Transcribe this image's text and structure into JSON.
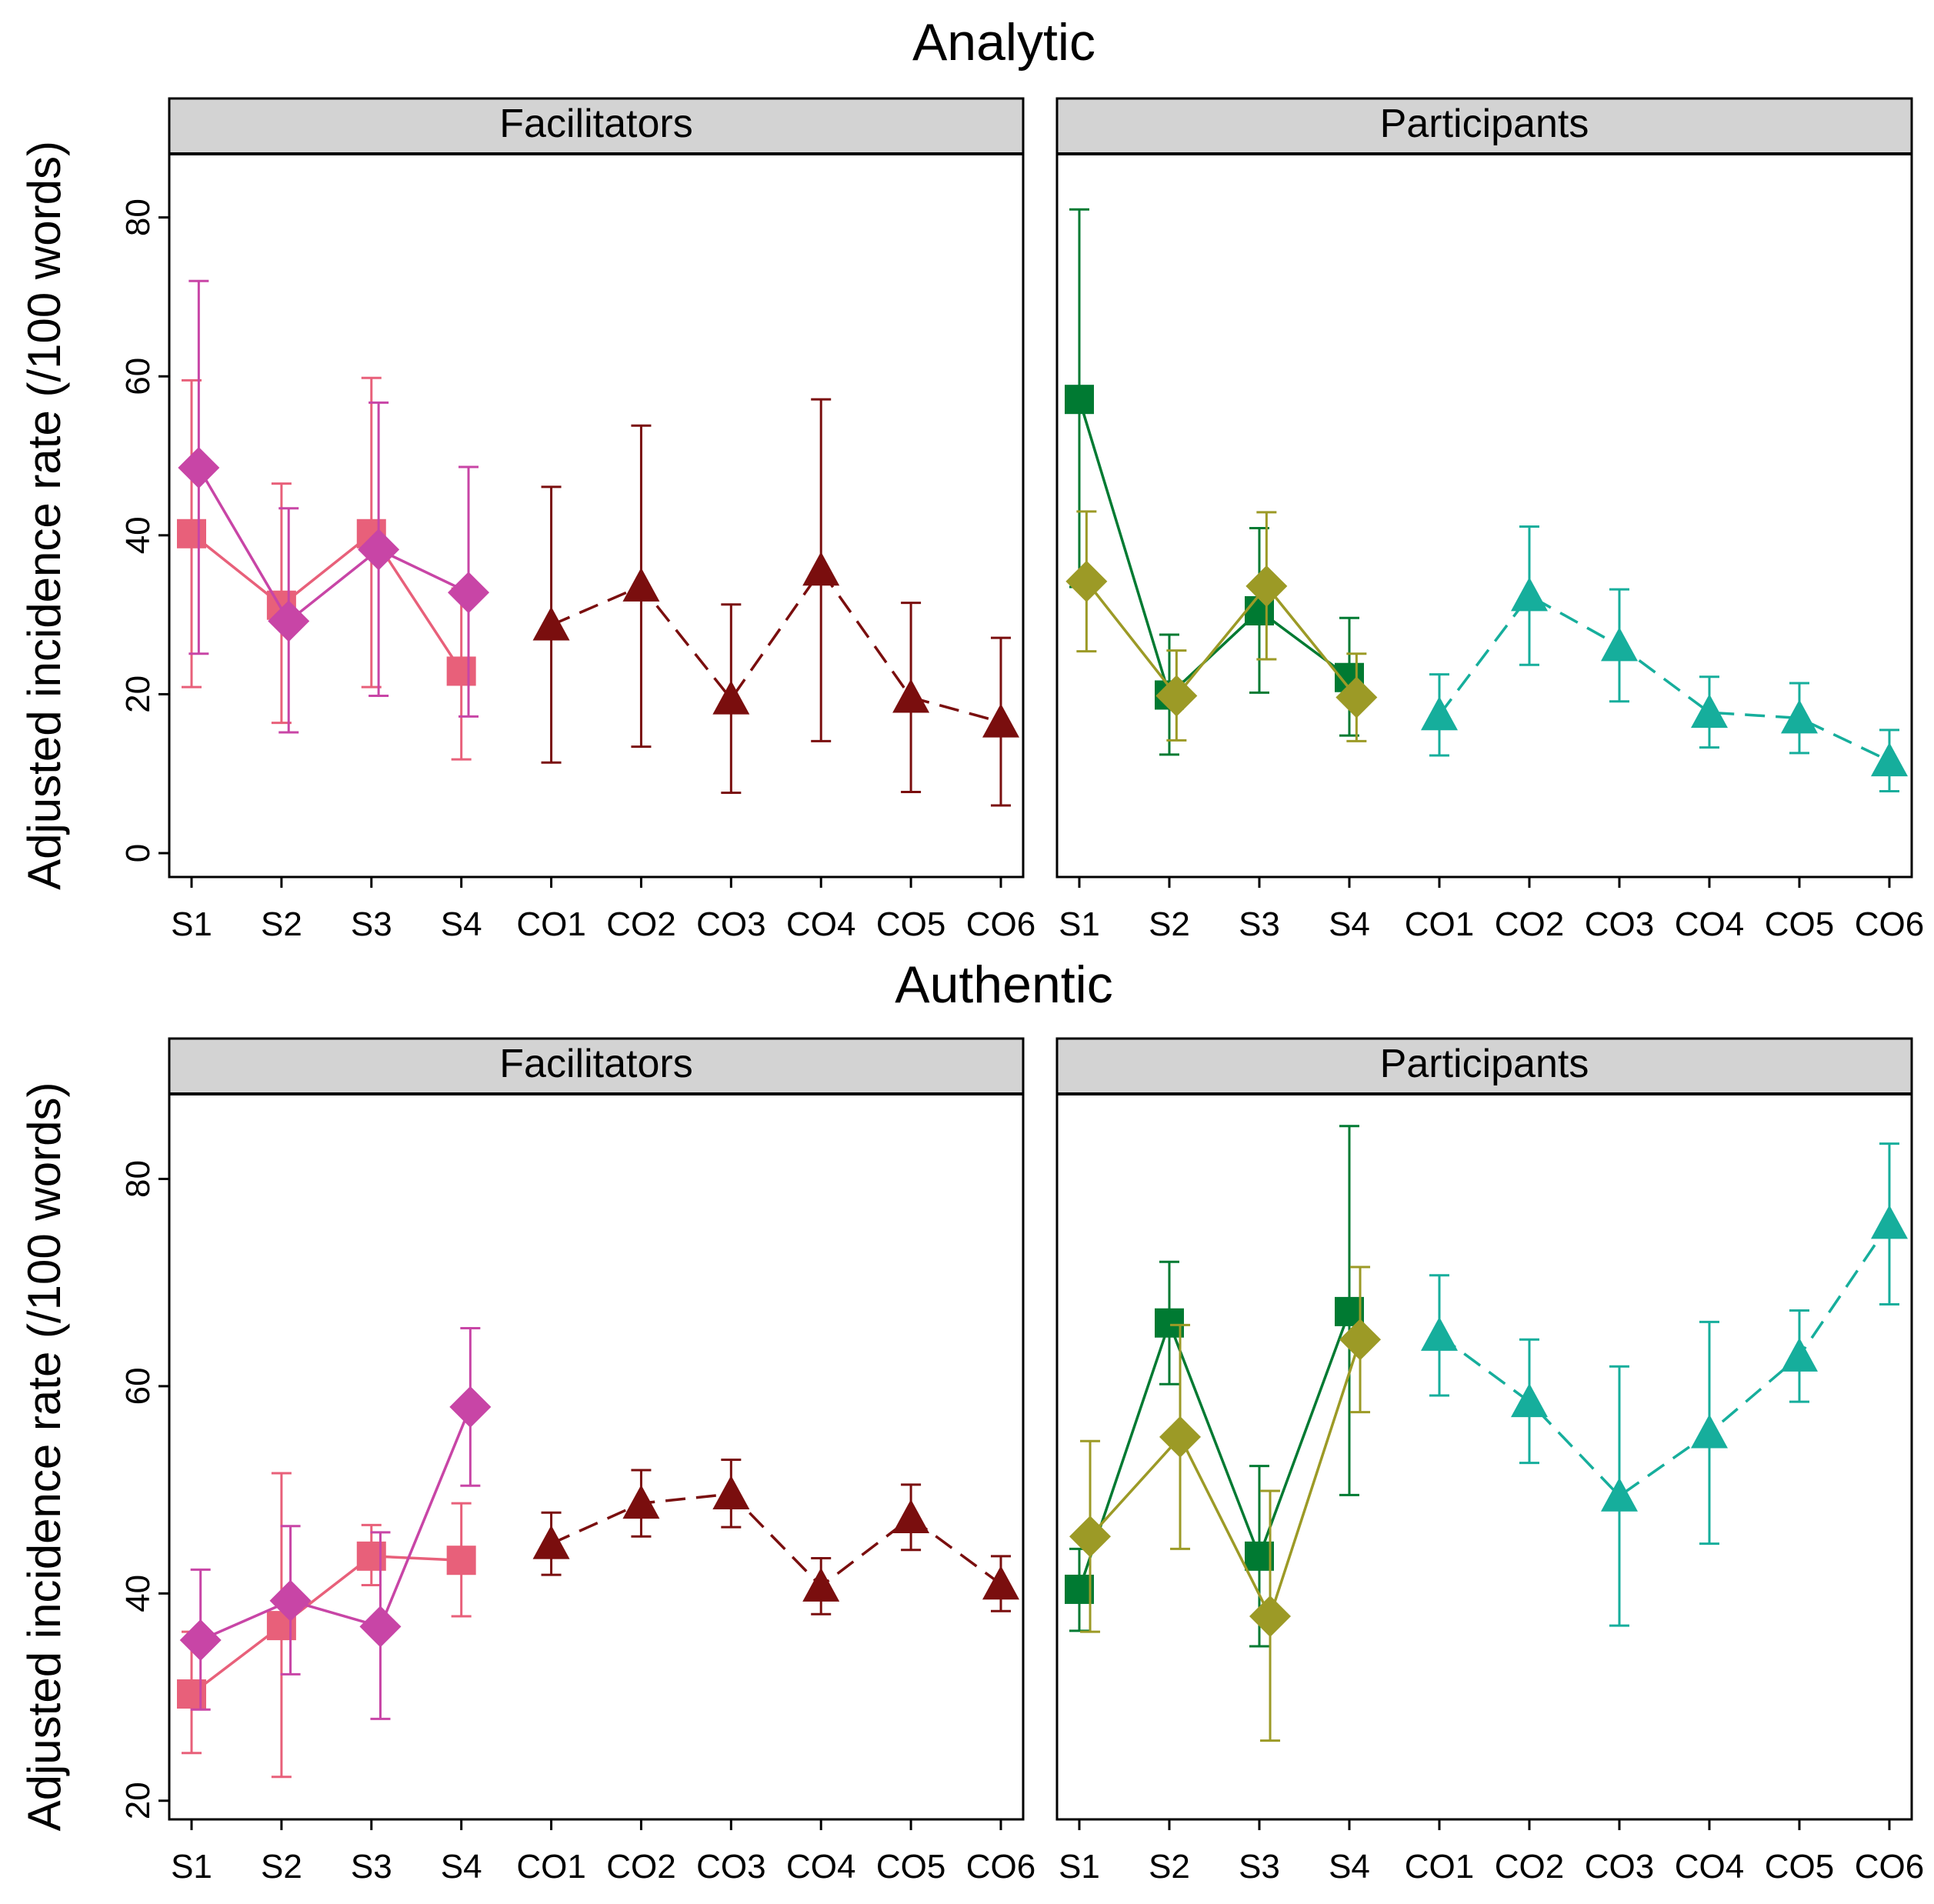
{
  "chart_data": [
    {
      "type": "line",
      "row_title": "Analytic",
      "panel": "Facilitators",
      "ylabel": "Adjusted incidence rate (/100 words)",
      "ylim": [
        -3,
        88
      ],
      "yticks": [
        0,
        20,
        40,
        60,
        80
      ],
      "categories": [
        "S1",
        "S2",
        "S3",
        "S4",
        "CO1",
        "CO2",
        "CO3",
        "CO4",
        "CO5",
        "CO6"
      ],
      "series": [
        {
          "name": "squares",
          "marker": "square",
          "color": "#e8607a",
          "dash": false,
          "points": [
            [
              0.0,
              40.2,
              20.9,
              59.5
            ],
            [
              1.0,
              31.2,
              16.4,
              46.5
            ],
            [
              2.0,
              40.2,
              20.9,
              59.8
            ],
            [
              3.0,
              22.9,
              11.8,
              33.3
            ]
          ]
        },
        {
          "name": "diamonds",
          "marker": "diamond",
          "color": "#c845a6",
          "dash": false,
          "points": [
            [
              0.08,
              48.5,
              25.1,
              72.0
            ],
            [
              1.08,
              29.2,
              15.2,
              43.4
            ],
            [
              2.08,
              38.2,
              19.8,
              56.7
            ],
            [
              3.08,
              32.8,
              17.2,
              48.6
            ]
          ]
        },
        {
          "name": "triangles",
          "marker": "triangle",
          "color": "#7a0e0e",
          "dash": true,
          "points": [
            [
              4.0,
              28.7,
              11.4,
              46.1
            ],
            [
              5.0,
              33.6,
              13.4,
              53.8
            ],
            [
              6.0,
              19.4,
              7.6,
              31.3
            ],
            [
              7.0,
              35.6,
              14.1,
              57.1
            ],
            [
              8.0,
              19.6,
              7.7,
              31.5
            ],
            [
              9.0,
              16.5,
              6.0,
              27.1
            ]
          ]
        }
      ]
    },
    {
      "type": "line",
      "row_title": "Analytic",
      "panel": "Participants",
      "ylim": [
        -3,
        88
      ],
      "categories": [
        "S1",
        "S2",
        "S3",
        "S4",
        "CO1",
        "CO2",
        "CO3",
        "CO4",
        "CO5",
        "CO6"
      ],
      "series": [
        {
          "name": "squares",
          "marker": "square",
          "color": "#007a32",
          "dash": false,
          "points": [
            [
              0.0,
              57.1,
              33.5,
              81.0
            ],
            [
              1.0,
              19.9,
              12.4,
              27.5
            ],
            [
              2.0,
              30.5,
              20.2,
              40.9
            ],
            [
              3.0,
              22.1,
              14.8,
              29.6
            ]
          ]
        },
        {
          "name": "diamonds",
          "marker": "diamond",
          "color": "#9c9a26",
          "dash": false,
          "points": [
            [
              0.08,
              34.2,
              25.4,
              43.0
            ],
            [
              1.08,
              19.8,
              14.2,
              25.5
            ],
            [
              2.08,
              33.6,
              24.4,
              42.9
            ],
            [
              3.08,
              19.6,
              14.1,
              25.1
            ]
          ]
        },
        {
          "name": "triangles",
          "marker": "triangle",
          "color": "#16ae9c",
          "dash": true,
          "points": [
            [
              4.0,
              17.4,
              12.3,
              22.5
            ],
            [
              5.0,
              32.4,
              23.7,
              41.1
            ],
            [
              6.0,
              26.1,
              19.1,
              33.2
            ],
            [
              7.0,
              17.7,
              13.3,
              22.2
            ],
            [
              8.0,
              17.0,
              12.6,
              21.4
            ],
            [
              9.0,
              11.6,
              7.8,
              15.5
            ]
          ]
        }
      ]
    },
    {
      "type": "line",
      "row_title": "Authentic",
      "panel": "Facilitators",
      "ylabel": "Adjusted incidence rate (/100 words)",
      "ylim": [
        18.2,
        88.2
      ],
      "yticks": [
        20,
        40,
        60,
        80
      ],
      "categories": [
        "S1",
        "S2",
        "S3",
        "S4",
        "CO1",
        "CO2",
        "CO3",
        "CO4",
        "CO5",
        "CO6"
      ],
      "series": [
        {
          "name": "squares",
          "marker": "square",
          "color": "#e8607a",
          "dash": false,
          "points": [
            [
              0.0,
              30.3,
              24.6,
              36.3
            ],
            [
              1.0,
              36.9,
              22.3,
              51.6
            ],
            [
              2.0,
              43.6,
              40.8,
              46.6
            ],
            [
              3.0,
              43.2,
              37.8,
              48.7
            ]
          ]
        },
        {
          "name": "diamonds",
          "marker": "diamond",
          "color": "#c845a6",
          "dash": false,
          "points": [
            [
              0.1,
              35.5,
              28.8,
              42.3
            ],
            [
              1.1,
              39.3,
              32.2,
              46.5
            ],
            [
              2.1,
              36.8,
              27.9,
              45.9
            ],
            [
              3.1,
              58.0,
              50.4,
              65.6
            ]
          ]
        },
        {
          "name": "triangles",
          "marker": "triangle",
          "color": "#7a0e0e",
          "dash": true,
          "points": [
            [
              4.0,
              44.8,
              41.8,
              47.8
            ],
            [
              5.0,
              48.7,
              45.5,
              51.9
            ],
            [
              6.0,
              49.6,
              46.4,
              52.9
            ],
            [
              7.0,
              40.7,
              38.0,
              43.4
            ],
            [
              8.0,
              47.3,
              44.2,
              50.5
            ],
            [
              9.0,
              40.9,
              38.3,
              43.6
            ]
          ]
        }
      ]
    },
    {
      "type": "line",
      "row_title": "Authentic",
      "panel": "Participants",
      "ylim": [
        18.2,
        88.2
      ],
      "categories": [
        "S1",
        "S2",
        "S3",
        "S4",
        "CO1",
        "CO2",
        "CO3",
        "CO4",
        "CO5",
        "CO6"
      ],
      "series": [
        {
          "name": "squares",
          "marker": "square",
          "color": "#007a32",
          "dash": false,
          "points": [
            [
              0.0,
              40.4,
              36.4,
              44.3
            ],
            [
              1.0,
              66.1,
              60.2,
              72.0
            ],
            [
              2.0,
              43.6,
              34.9,
              52.3
            ],
            [
              3.0,
              67.2,
              49.5,
              85.1
            ]
          ]
        },
        {
          "name": "diamonds",
          "marker": "diamond",
          "color": "#9c9a26",
          "dash": false,
          "points": [
            [
              0.12,
              45.5,
              36.3,
              54.7
            ],
            [
              1.12,
              55.1,
              44.3,
              65.9
            ],
            [
              2.12,
              37.8,
              25.8,
              49.9
            ],
            [
              3.12,
              64.5,
              57.5,
              71.5
            ]
          ]
        },
        {
          "name": "triangles",
          "marker": "triangle",
          "color": "#16ae9c",
          "dash": true,
          "points": [
            [
              4.0,
              64.9,
              59.1,
              70.7
            ],
            [
              5.0,
              58.5,
              52.6,
              64.5
            ],
            [
              6.0,
              49.4,
              36.9,
              61.9
            ],
            [
              7.0,
              55.5,
              44.8,
              66.2
            ],
            [
              8.0,
              62.9,
              58.5,
              67.3
            ],
            [
              9.0,
              75.7,
              67.9,
              83.4
            ]
          ]
        }
      ]
    }
  ]
}
